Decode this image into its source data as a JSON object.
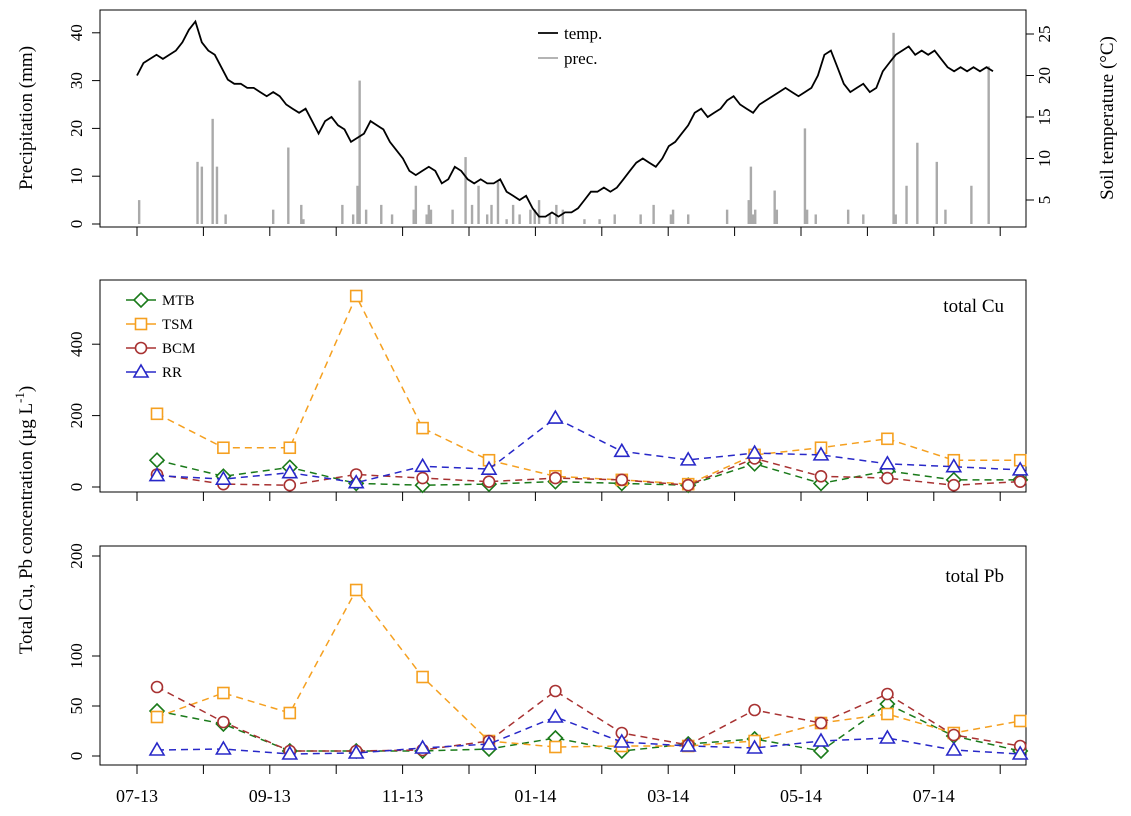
{
  "chart_data": [
    {
      "type": "line",
      "panel": "top",
      "ylabel": "Precipitation (mm)",
      "ylabel_right": "Soil temperature (°C)",
      "y_ticks": [
        0,
        10,
        20,
        30,
        40
      ],
      "y_ticks_right": [
        5,
        10,
        15,
        20,
        25
      ],
      "legend": {
        "placement": "top-center",
        "entries": [
          "temp.",
          "prec."
        ]
      },
      "colors": {
        "temp": "#000000",
        "prec": "#aaaaaa"
      },
      "temp_series": {
        "name": "temp.",
        "x_day": [
          0,
          3,
          6,
          9,
          12,
          15,
          18,
          21,
          24,
          27,
          30,
          33,
          36,
          39,
          42,
          45,
          48,
          51,
          54,
          57,
          60,
          63,
          66,
          69,
          72,
          75,
          78,
          81,
          84,
          87,
          90,
          93,
          96,
          99,
          102,
          105,
          108,
          111,
          114,
          117,
          120,
          123,
          126,
          129,
          132,
          135,
          138,
          141,
          144,
          147,
          150,
          153,
          156,
          159,
          162,
          165,
          168,
          171,
          174,
          177,
          180,
          183,
          186,
          189,
          192,
          195,
          198,
          201,
          204,
          207,
          210,
          213,
          216,
          219,
          222,
          225,
          228,
          231,
          234,
          237,
          240,
          243,
          246,
          249,
          252,
          255,
          258,
          261,
          264,
          267,
          270,
          273,
          276,
          279,
          282,
          285,
          288,
          291,
          294,
          297,
          300,
          303,
          306,
          309,
          312,
          315,
          318,
          321,
          324,
          327,
          330,
          333,
          336,
          339,
          342,
          345,
          348,
          351,
          354,
          357,
          360,
          363,
          366,
          369,
          372,
          375,
          378,
          381,
          384,
          387,
          390,
          393,
          396
        ],
        "values": [
          20,
          21.5,
          22,
          22.5,
          22,
          22.5,
          23,
          24,
          25.5,
          26.5,
          24,
          23,
          22.5,
          21,
          19.5,
          19,
          19,
          18.5,
          18.5,
          18,
          17.5,
          18,
          17.5,
          16.5,
          16,
          15.5,
          16,
          14.5,
          13,
          14.5,
          15,
          14,
          13.5,
          12,
          12.5,
          13,
          14.5,
          14,
          13.5,
          12,
          11,
          10,
          8.5,
          8,
          8.5,
          9,
          8.5,
          7,
          7.5,
          9,
          8.5,
          7.5,
          7,
          7.5,
          7,
          7,
          7.5,
          6,
          5.5,
          5,
          5.5,
          4,
          3,
          3,
          3.5,
          3,
          3.5,
          3.5,
          4,
          5,
          6,
          6,
          6.5,
          6,
          6.5,
          7.5,
          8.5,
          9.5,
          10,
          9.5,
          9,
          10,
          11.5,
          12,
          13,
          14,
          15.5,
          16,
          15,
          15.5,
          16,
          17,
          17.5,
          16.5,
          16,
          15.5,
          16.5,
          17,
          17.5,
          18,
          18.5,
          18,
          17.5,
          18,
          18.5,
          20,
          22.5,
          23,
          21,
          19,
          18,
          18.5,
          19,
          18,
          18.5,
          20.5,
          21.5,
          22.5,
          23,
          23.5,
          22.5,
          23,
          22.5,
          23,
          22,
          21,
          20.5,
          21,
          20.5,
          21,
          20.5,
          21,
          20.5
        ]
      },
      "prec_series": {
        "name": "prec.",
        "x_day": [
          1,
          28,
          30,
          35,
          37,
          41,
          63,
          70,
          76,
          77,
          95,
          100,
          102,
          103,
          106,
          113,
          118,
          128,
          129,
          134,
          135,
          136,
          146,
          152,
          155,
          158,
          162,
          164,
          167,
          171,
          174,
          177,
          182,
          184,
          186,
          191,
          194,
          197,
          207,
          214,
          221,
          233,
          239,
          247,
          248,
          255,
          273,
          283,
          284,
          285,
          286,
          295,
          296,
          309,
          310,
          314,
          329,
          336,
          350,
          351,
          356,
          361,
          370,
          374,
          386,
          394
        ],
        "values": [
          5,
          13,
          12,
          22,
          12,
          2,
          3,
          16,
          4,
          1,
          4,
          2,
          8,
          30,
          3,
          4,
          2,
          3,
          8,
          2,
          4,
          3,
          3,
          14,
          4,
          8,
          2,
          4,
          9,
          1,
          4,
          2,
          3,
          3,
          5,
          2,
          4,
          3,
          1,
          1,
          2,
          2,
          4,
          2,
          3,
          2,
          3,
          5,
          12,
          2,
          3,
          7,
          3,
          20,
          3,
          2,
          3,
          2,
          40,
          2,
          8,
          17,
          13,
          3,
          8,
          33
        ]
      },
      "xlim": [
        0,
        396
      ]
    },
    {
      "type": "line",
      "panel": "middle",
      "annotation": "total Cu",
      "y_ticks": [
        0,
        200,
        400
      ],
      "ylim": [
        0,
        550
      ],
      "legend": {
        "placement": "top-left",
        "entries": [
          "MTB",
          "TSM",
          "BCM",
          "RR"
        ]
      },
      "x": [
        0,
        1,
        2,
        3,
        4,
        5,
        6,
        7,
        8,
        9,
        10,
        11,
        12,
        13
      ],
      "series": [
        {
          "name": "MTB",
          "color": "#1a7a1a",
          "marker": "diamond",
          "values": [
            75,
            30,
            55,
            10,
            5,
            8,
            15,
            10,
            5,
            65,
            10,
            45,
            20,
            20
          ]
        },
        {
          "name": "TSM",
          "color": "#f5a020",
          "marker": "square",
          "values": [
            205,
            110,
            110,
            535,
            165,
            75,
            30,
            20,
            8,
            90,
            110,
            135,
            75,
            75
          ]
        },
        {
          "name": "BCM",
          "color": "#a83232",
          "marker": "circle",
          "values": [
            35,
            8,
            5,
            35,
            25,
            15,
            25,
            20,
            5,
            80,
            30,
            25,
            5,
            15
          ]
        },
        {
          "name": "RR",
          "color": "#2828c8",
          "marker": "triangle",
          "values": [
            32,
            22,
            40,
            12,
            58,
            50,
            193,
            100,
            76,
            95,
            90,
            65,
            57,
            48
          ]
        }
      ]
    },
    {
      "type": "line",
      "panel": "bottom",
      "annotation": "total Pb",
      "y_ticks": [
        0,
        50,
        100,
        200
      ],
      "ylim": [
        0,
        200
      ],
      "x_tick_labels": [
        "07-13",
        "09-13",
        "11-13",
        "01-14",
        "03-14",
        "05-14",
        "07-14"
      ],
      "x": [
        0,
        1,
        2,
        3,
        4,
        5,
        6,
        7,
        8,
        9,
        10,
        11,
        12,
        13
      ],
      "series": [
        {
          "name": "MTB",
          "color": "#1a7a1a",
          "marker": "diamond",
          "values": [
            45,
            32,
            5,
            5,
            5,
            7,
            18,
            5,
            12,
            17,
            5,
            52,
            20,
            5
          ]
        },
        {
          "name": "TSM",
          "color": "#f5a020",
          "marker": "square",
          "values": [
            39,
            63,
            43,
            166,
            79,
            15,
            9,
            10,
            10,
            15,
            33,
            42,
            23,
            35
          ]
        },
        {
          "name": "BCM",
          "color": "#a83232",
          "marker": "circle",
          "values": [
            69,
            34,
            5,
            5,
            6,
            15,
            65,
            23,
            11,
            46,
            33,
            62,
            21,
            10
          ]
        },
        {
          "name": "RR",
          "color": "#2828c8",
          "marker": "triangle",
          "values": [
            6,
            7,
            2,
            3,
            8,
            12,
            39,
            14,
            10,
            8,
            15,
            18,
            6,
            2
          ]
        }
      ]
    }
  ],
  "ylabel_shared": "Total Cu, Pb concentration (µg  L",
  "ylabel_shared_sup": "-1",
  "ylabel_shared_end": ")"
}
